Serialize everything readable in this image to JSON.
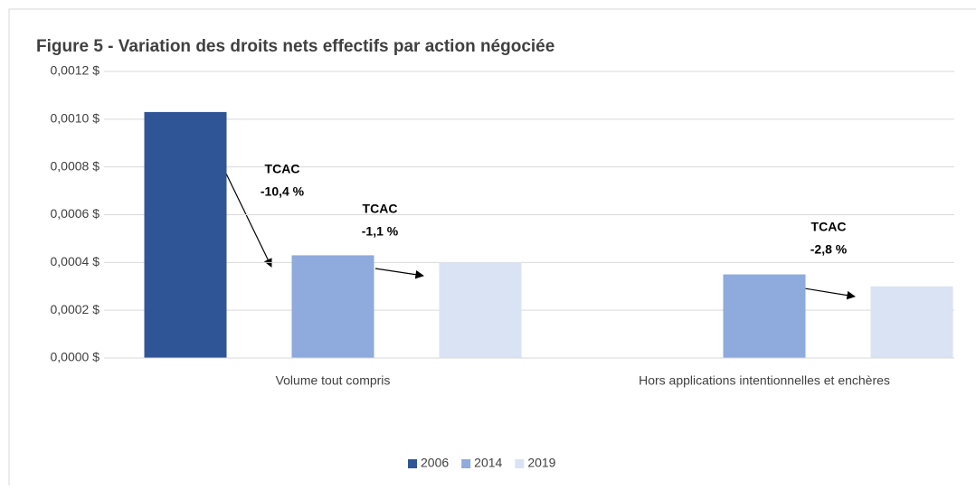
{
  "chart_data": {
    "type": "bar",
    "title": "Figure 5 - Variation des droits nets effectifs par action négociée",
    "categories": [
      "Volume tout compris",
      "Hors applications intentionnelles et enchères"
    ],
    "series": [
      {
        "name": "2006",
        "color": "#2f5597",
        "values": [
          0.00103,
          null
        ]
      },
      {
        "name": "2014",
        "color": "#8faadc",
        "values": [
          0.00043,
          0.00035
        ]
      },
      {
        "name": "2019",
        "color": "#dae3f3",
        "values": [
          0.0004,
          0.0003
        ]
      }
    ],
    "ylim": [
      0,
      0.0012
    ],
    "yticks": [
      {
        "value": 0,
        "label": "0,0000 $"
      },
      {
        "value": 0.0002,
        "label": "0,0002 $"
      },
      {
        "value": 0.0004,
        "label": "0,0004 $"
      },
      {
        "value": 0.0006,
        "label": "0,0006 $"
      },
      {
        "value": 0.0008,
        "label": "0,0008 $"
      },
      {
        "value": 0.001,
        "label": "0,0010 $"
      },
      {
        "value": 0.0012,
        "label": "0,0012 $"
      }
    ],
    "grid": true,
    "legend": "bottom",
    "annotations": [
      {
        "text": "TCAC",
        "value": -10.4,
        "label": "-10,4 %"
      },
      {
        "text": "TCAC",
        "value": -1.1,
        "label": "-1,1 %"
      },
      {
        "text": "TCAC",
        "value": -2.8,
        "label": "-2,8 %"
      }
    ]
  }
}
